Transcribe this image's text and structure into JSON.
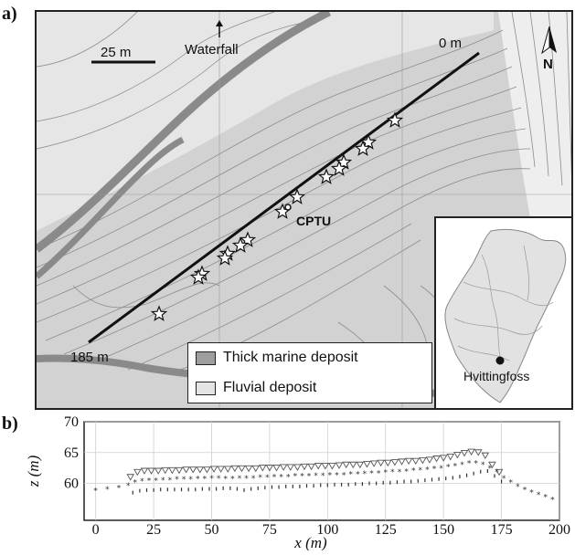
{
  "panel_a_label": "a)",
  "panel_b_label": "b)",
  "map": {
    "scale_bar_label": "25 m",
    "waterfall_label": "Waterfall",
    "north_label": "N",
    "profile_start_label": "0 m",
    "profile_end_label": "185 m",
    "cptu_label": "CPTU",
    "legend": [
      {
        "label": "Thick marine deposit",
        "color": "#9e9e9e"
      },
      {
        "label": "Fluvial deposit",
        "color": "#e4e4e4"
      }
    ],
    "inset": {
      "location_label": "Hvittingfoss"
    },
    "colors": {
      "marine": "#c8c8c8",
      "fluvial": "#e6e6e6",
      "river": "#8a8a8a",
      "contour": "#8c8c8c"
    }
  },
  "chart_data": {
    "type": "scatter",
    "xlabel": "x (m)",
    "ylabel": "z (m)",
    "xlim": [
      -5,
      200
    ],
    "ylim": [
      54,
      70
    ],
    "xticks": [
      0,
      25,
      50,
      75,
      100,
      125,
      150,
      175,
      200
    ],
    "yticks": [
      60,
      65,
      70
    ],
    "grid": true,
    "series": [
      {
        "marker": "triangle-down",
        "x": [
          15,
          18,
          21,
          24,
          27,
          30,
          33,
          36,
          39,
          42,
          45,
          48,
          51,
          54,
          57,
          60,
          63,
          66,
          69,
          72,
          75,
          78,
          81,
          84,
          87,
          90,
          93,
          96,
          99,
          102,
          105,
          108,
          111,
          114,
          117,
          120,
          123,
          126,
          129,
          132,
          135,
          138,
          141,
          144,
          147,
          150,
          153,
          156,
          159,
          162,
          165,
          168,
          171,
          174
        ],
        "y": [
          61,
          61.8,
          62,
          62,
          62,
          62.1,
          62.1,
          62.1,
          62.2,
          62.2,
          62.2,
          62.2,
          62.3,
          62.3,
          62.3,
          62.4,
          62.4,
          62.4,
          62.4,
          62.5,
          62.5,
          62.5,
          62.6,
          62.6,
          62.6,
          62.7,
          62.7,
          62.8,
          62.8,
          62.8,
          62.9,
          63,
          63,
          63,
          63.1,
          63.2,
          63.3,
          63.3,
          63.4,
          63.5,
          63.6,
          63.6,
          63.7,
          63.8,
          64,
          64.1,
          64.3,
          64.6,
          64.9,
          65.1,
          65,
          64.5,
          63,
          61.8
        ]
      },
      {
        "marker": "star",
        "x": [
          0,
          5,
          10,
          14,
          17,
          20,
          23,
          26,
          29,
          32,
          35,
          38,
          41,
          44,
          47,
          50,
          53,
          56,
          59,
          62,
          65,
          68,
          71,
          74,
          77,
          80,
          83,
          86,
          89,
          92,
          95,
          98,
          101,
          104,
          107,
          110,
          113,
          116,
          119,
          122,
          125,
          128,
          131,
          134,
          137,
          140,
          143,
          146,
          149,
          152,
          155,
          158,
          161,
          164,
          167,
          170,
          173,
          176,
          179,
          182,
          185,
          188,
          191,
          194,
          197
        ],
        "y": [
          59,
          59.2,
          59.4,
          59.8,
          60.3,
          60.5,
          60.6,
          60.6,
          60.7,
          60.7,
          60.8,
          60.8,
          60.8,
          60.9,
          60.9,
          61,
          61,
          60.9,
          60.9,
          61,
          61,
          61,
          61.1,
          61.1,
          61.2,
          61.2,
          61.2,
          61.3,
          61.3,
          61.3,
          61.4,
          61.4,
          61.5,
          61.5,
          61.5,
          61.6,
          61.6,
          61.7,
          61.8,
          61.8,
          61.9,
          62,
          62,
          62.1,
          62.2,
          62.3,
          62.4,
          62.5,
          62.6,
          62.8,
          63,
          63.2,
          63.4,
          63.4,
          63.2,
          62.6,
          62,
          61,
          60.3,
          59.6,
          59.1,
          58.7,
          58.3,
          57.9,
          57.5
        ]
      },
      {
        "marker": "dot",
        "x": [
          16,
          19,
          22,
          25,
          28,
          31,
          34,
          37,
          40,
          43,
          46,
          49,
          52,
          55,
          58,
          61,
          64,
          67,
          70,
          73,
          76,
          79,
          82,
          85,
          88,
          91,
          94,
          97,
          100,
          103,
          106,
          109,
          112,
          115,
          118,
          121,
          124,
          127,
          130,
          133,
          136,
          139,
          142,
          145,
          148,
          151,
          154,
          157,
          160,
          163,
          166,
          169,
          172,
          175
        ],
        "y": [
          58.5,
          58.8,
          58.9,
          58.9,
          59,
          59,
          59,
          59,
          59,
          59,
          59.1,
          59.1,
          59.1,
          59.2,
          59.2,
          59.1,
          58.9,
          59.1,
          59.2,
          59.3,
          59.4,
          59.4,
          59.5,
          59.5,
          59.5,
          59.6,
          59.6,
          59.7,
          59.7,
          59.8,
          59.8,
          59.8,
          59.9,
          59.9,
          60,
          60,
          60.1,
          60.1,
          60.2,
          60.3,
          60.3,
          60.4,
          60.5,
          60.6,
          60.7,
          60.8,
          60.9,
          61.1,
          61.3,
          61.6,
          61.9,
          62,
          61.2,
          60.3
        ]
      }
    ]
  }
}
